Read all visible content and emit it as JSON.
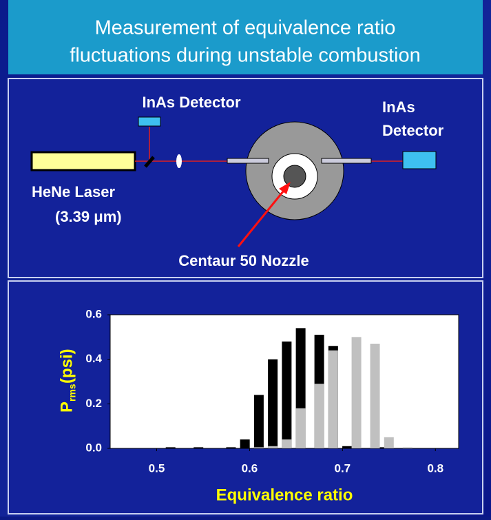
{
  "header": {
    "title_lines": [
      "Measurement of equivalence ratio",
      "fluctuations during unstable combustion"
    ]
  },
  "diagram": {
    "detector_top": "InAs Detector",
    "detector_right_lines": [
      "InAs",
      "Detector"
    ],
    "laser_lines": [
      "HeNe Laser",
      "(3.39 μm)"
    ],
    "nozzle": "Centaur 50 Nozzle"
  },
  "chart_data": {
    "type": "bar",
    "x": [
      0.515,
      0.545,
      0.58,
      0.595,
      0.61,
      0.625,
      0.64,
      0.655,
      0.675,
      0.69,
      0.705,
      0.715,
      0.735,
      0.74,
      0.75,
      0.77
    ],
    "series": [
      {
        "color": "#000000",
        "values": [
          0.005,
          0.005,
          0.005,
          0.04,
          0.24,
          0.4,
          0.48,
          0.54,
          0.51,
          0.46,
          0.01,
          null,
          null,
          0.005,
          null,
          null
        ]
      },
      {
        "color": "#c0c0c0",
        "values": [
          null,
          null,
          null,
          null,
          0.005,
          0.01,
          0.04,
          0.18,
          0.29,
          0.44,
          null,
          0.5,
          0.47,
          null,
          0.05,
          0.005
        ]
      }
    ],
    "x_label": "Equivalence ratio",
    "y_label": {
      "main": "P",
      "sub": "rms",
      "unit": "(psi)"
    },
    "xlim": [
      0.45,
      0.825
    ],
    "ylim": [
      0,
      0.6
    ],
    "xticks": [
      0.5,
      0.6,
      0.7,
      0.8
    ],
    "yticks": [
      {
        "value": 0,
        "label": "0.0"
      },
      0.2,
      0.4,
      0.6
    ]
  }
}
